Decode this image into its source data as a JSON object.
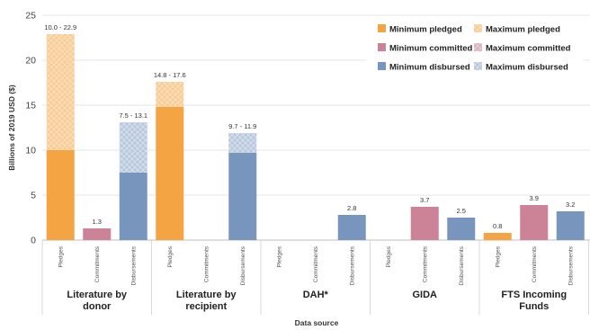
{
  "chart_data": {
    "type": "bar",
    "ylabel": "Billions of 2019 USD ($)",
    "xlabel": "Data source",
    "ylim": [
      0,
      25
    ],
    "yticks": [
      "0",
      "5",
      "10",
      "15",
      "20",
      "25"
    ],
    "gridlines": true,
    "legend_position": "top-right",
    "groups": [
      {
        "name": "Literature by donor",
        "name_lines": [
          "Literature by",
          "donor"
        ],
        "categories": [
          "Pledges",
          "Commitments",
          "Disbursements"
        ]
      },
      {
        "name": "Literature by recipient",
        "name_lines": [
          "Literature by",
          "recipient"
        ],
        "categories": [
          "Pledges",
          "Commitments",
          "Disbursements"
        ]
      },
      {
        "name": "DAH*",
        "name_lines": [
          "DAH*"
        ],
        "categories": [
          "Pledges",
          "Commitments",
          "Disbursements"
        ]
      },
      {
        "name": "GIDA",
        "name_lines": [
          "GIDA"
        ],
        "categories": [
          "Pledges",
          "Commitments",
          "Disbursements"
        ]
      },
      {
        "name": "FTS Incoming Funds",
        "name_lines": [
          "FTS Incoming",
          "Funds"
        ],
        "categories": [
          "Pledges",
          "Commitments",
          "Disbursements"
        ]
      }
    ],
    "series": [
      {
        "name": "Minimum pledged",
        "color": "#F4A442"
      },
      {
        "name": "Maximum pledged",
        "color": "#F8CD96"
      },
      {
        "name": "Minimum committed",
        "color": "#CC8297"
      },
      {
        "name": "Maximum committed",
        "color": "#D9B3BE"
      },
      {
        "name": "Minimum disbursed",
        "color": "#7895BD"
      },
      {
        "name": "Maximum disbursed",
        "color": "#B9C8DD"
      }
    ],
    "bars": [
      {
        "group": 0,
        "category": "Pledges",
        "kind": "pledged",
        "min": 10.0,
        "max": 22.9,
        "label": "10.0 - 22.9"
      },
      {
        "group": 0,
        "category": "Commitments",
        "kind": "committed",
        "min": 1.3,
        "max": 1.3,
        "label": "1.3"
      },
      {
        "group": 0,
        "category": "Disbursements",
        "kind": "disbursed",
        "min": 7.5,
        "max": 13.1,
        "label": "7.5 - 13.1"
      },
      {
        "group": 1,
        "category": "Pledges",
        "kind": "pledged",
        "min": 14.8,
        "max": 17.6,
        "label": "14.8 - 17.6"
      },
      {
        "group": 1,
        "category": "Disbursements",
        "kind": "disbursed",
        "min": 9.7,
        "max": 11.9,
        "label": "9.7 - 11.9"
      },
      {
        "group": 2,
        "category": "Disbursements",
        "kind": "disbursed",
        "min": 2.8,
        "max": 2.8,
        "label": "2.8"
      },
      {
        "group": 3,
        "category": "Commitments",
        "kind": "committed",
        "min": 3.7,
        "max": 3.7,
        "label": "3.7"
      },
      {
        "group": 3,
        "category": "Disbursements",
        "kind": "disbursed",
        "min": 2.5,
        "max": 2.5,
        "label": "2.5"
      },
      {
        "group": 4,
        "category": "Pledges",
        "kind": "pledged",
        "min": 0.8,
        "max": 0.8,
        "label": "0.8"
      },
      {
        "group": 4,
        "category": "Commitments",
        "kind": "committed",
        "min": 3.9,
        "max": 3.9,
        "label": "3.9"
      },
      {
        "group": 4,
        "category": "Disbursements",
        "kind": "disbursed",
        "min": 3.2,
        "max": 3.2,
        "label": "3.2"
      }
    ]
  }
}
